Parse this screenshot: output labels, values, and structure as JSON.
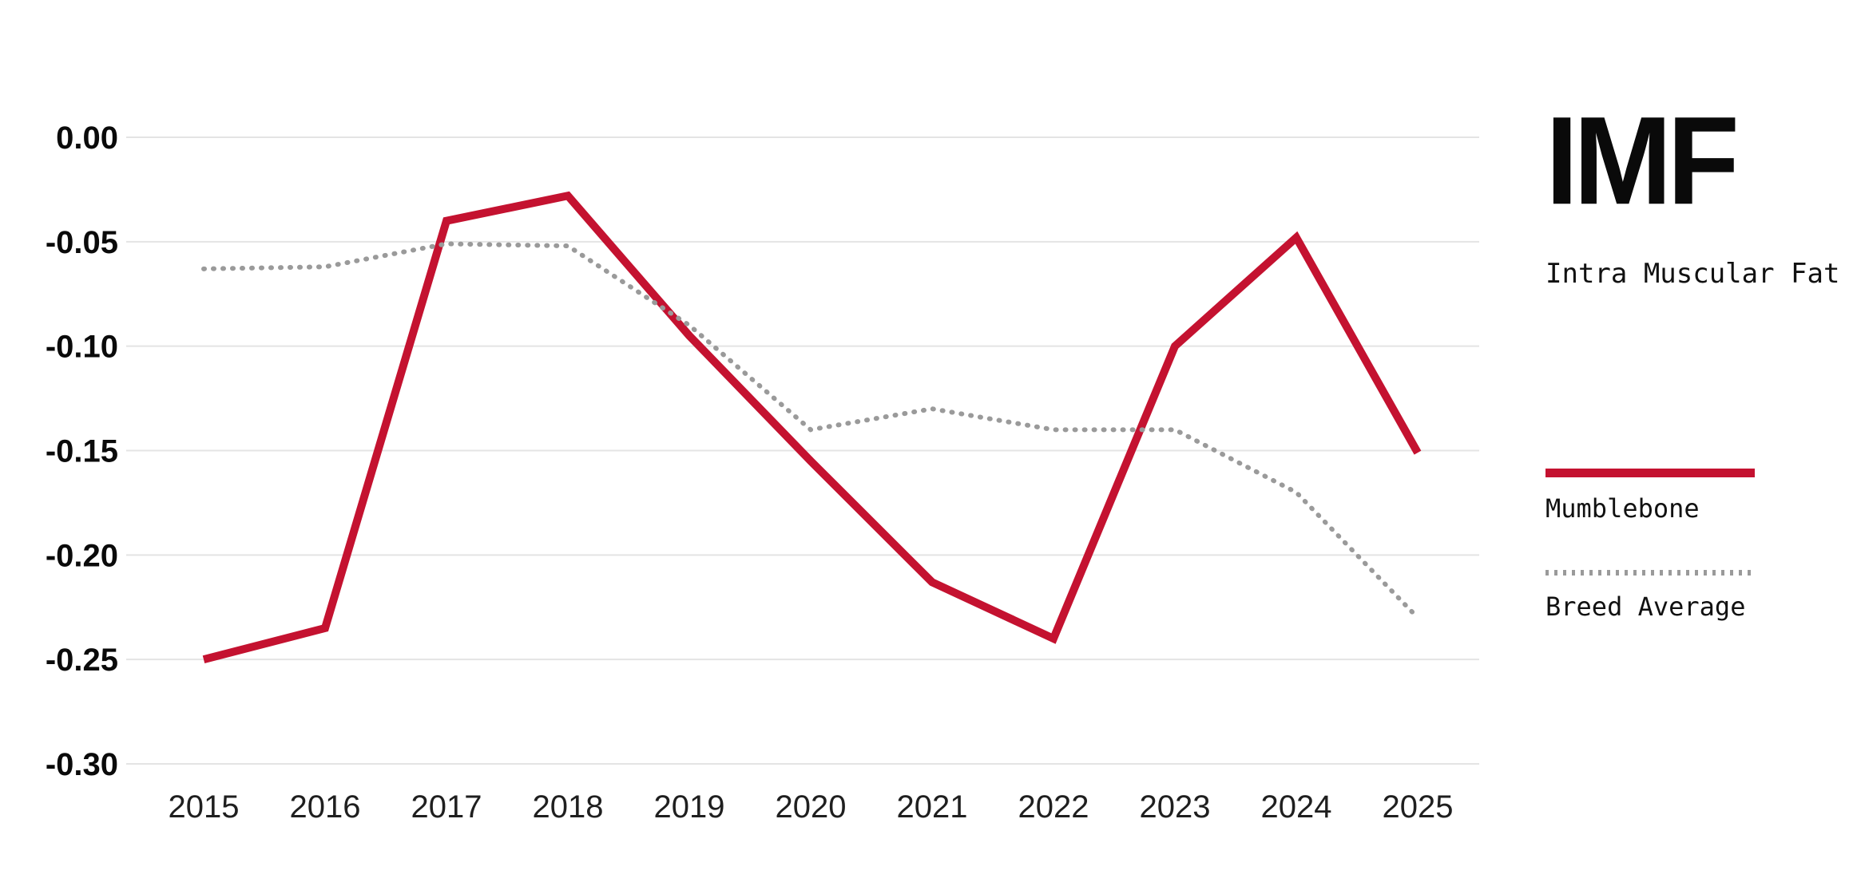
{
  "branding": {
    "logo": "IMF",
    "subtitle": "Intra Muscular Fat"
  },
  "legend": [
    {
      "label": "Mumblebone",
      "style": "solid",
      "color": "#c41230"
    },
    {
      "label": "Breed Average",
      "style": "dotted",
      "color": "#9a9a9a"
    }
  ],
  "chart_data": {
    "type": "line",
    "title": "IMF — Intra Muscular Fat",
    "xlabel": "",
    "ylabel": "",
    "categories": [
      "2015",
      "2016",
      "2017",
      "2018",
      "2019",
      "2020",
      "2021",
      "2022",
      "2023",
      "2024",
      "2025"
    ],
    "series": [
      {
        "name": "Mumblebone",
        "color": "#c41230",
        "style": "solid",
        "values": [
          -0.25,
          -0.235,
          -0.04,
          -0.028,
          -0.095,
          -0.155,
          -0.213,
          -0.24,
          -0.1,
          -0.048,
          -0.151
        ]
      },
      {
        "name": "Breed Average",
        "color": "#9a9a9a",
        "style": "dotted",
        "values": [
          -0.063,
          -0.062,
          -0.051,
          -0.052,
          -0.09,
          -0.14,
          -0.13,
          -0.14,
          -0.14,
          -0.17,
          -0.23
        ]
      }
    ],
    "ylim": [
      -0.3,
      0.0
    ],
    "yticks": [
      0.0,
      -0.05,
      -0.1,
      -0.15,
      -0.2,
      -0.25,
      -0.3
    ],
    "ytick_labels": [
      "0.00",
      "-0.05",
      "-0.10",
      "-0.15",
      "-0.20",
      "-0.25",
      "-0.30"
    ],
    "grid": true,
    "legend_position": "right"
  },
  "style": {
    "grid_color": "#e4e4e4",
    "ytick_color": "#0a0a0a",
    "xtick_color": "#1f1f1f"
  }
}
